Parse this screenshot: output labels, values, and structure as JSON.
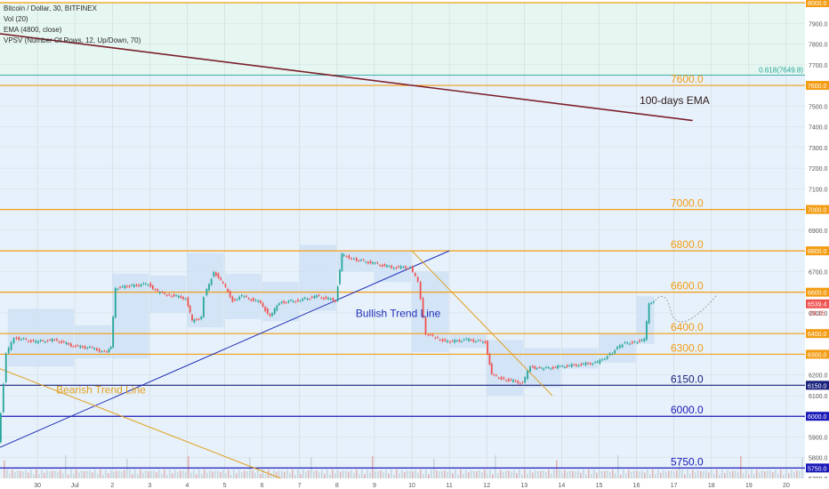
{
  "legend": {
    "symbol": "Bitcoin / Dollar, 30, BITFINEX",
    "vol": "Vol (20)",
    "ema": "EMA (4800, close)",
    "vpsv": "VPSV (Number Of Rows, 12, Up/Down, 70)"
  },
  "chart_data": {
    "type": "candlestick",
    "title": "Bitcoin / Dollar, 30, BITFINEX",
    "xlabel": "",
    "ylabel": "",
    "ylim": [
      5700,
      8000
    ],
    "x_range": [
      "2018-06-29",
      "2018-07-20"
    ],
    "x_ticks": [
      {
        "date": "2018-06-30",
        "label": "30"
      },
      {
        "date": "2018-07-01",
        "label": "Jul"
      },
      {
        "date": "2018-07-02",
        "label": "2"
      },
      {
        "date": "2018-07-03",
        "label": "3"
      },
      {
        "date": "2018-07-04",
        "label": "4"
      },
      {
        "date": "2018-07-05",
        "label": "5"
      },
      {
        "date": "2018-07-06",
        "label": "6"
      },
      {
        "date": "2018-07-07",
        "label": "7"
      },
      {
        "date": "2018-07-08",
        "label": "8"
      },
      {
        "date": "2018-07-09",
        "label": "9"
      },
      {
        "date": "2018-07-10",
        "label": "10"
      },
      {
        "date": "2018-07-11",
        "label": "11"
      },
      {
        "date": "2018-07-12",
        "label": "12"
      },
      {
        "date": "2018-07-13",
        "label": "13"
      },
      {
        "date": "2018-07-14",
        "label": "14"
      },
      {
        "date": "2018-07-15",
        "label": "15"
      },
      {
        "date": "2018-07-16",
        "label": "16"
      },
      {
        "date": "2018-07-17",
        "label": "17"
      },
      {
        "date": "2018-07-18",
        "label": "18"
      },
      {
        "date": "2018-07-19",
        "label": "19"
      },
      {
        "date": "2018-07-20",
        "label": "20"
      }
    ],
    "y_ticks": [
      5700,
      5800,
      5900,
      6000,
      6100,
      6150,
      6200,
      6300,
      6400,
      6500,
      6600,
      6700,
      6800,
      6900,
      7000,
      7100,
      7200,
      7300,
      7400,
      7500,
      7600,
      7700,
      7800,
      7900,
      8000
    ],
    "price_path": [
      [
        "2018-06-29T00:00",
        5880
      ],
      [
        "2018-06-29T05:00",
        6300
      ],
      [
        "2018-06-29T10:00",
        6380
      ],
      [
        "2018-06-30T00:00",
        6360
      ],
      [
        "2018-06-30T12:00",
        6370
      ],
      [
        "2018-07-01T00:00",
        6340
      ],
      [
        "2018-07-01T12:00",
        6330
      ],
      [
        "2018-07-01T20:00",
        6310
      ],
      [
        "2018-07-02T00:00",
        6330
      ],
      [
        "2018-07-02T03:00",
        6620
      ],
      [
        "2018-07-02T12:00",
        6630
      ],
      [
        "2018-07-03T00:00",
        6640
      ],
      [
        "2018-07-03T06:00",
        6600
      ],
      [
        "2018-07-03T12:00",
        6590
      ],
      [
        "2018-07-04T00:00",
        6570
      ],
      [
        "2018-07-04T04:00",
        6460
      ],
      [
        "2018-07-04T10:00",
        6480
      ],
      [
        "2018-07-04T12:00",
        6580
      ],
      [
        "2018-07-04T18:00",
        6700
      ],
      [
        "2018-07-05T00:00",
        6640
      ],
      [
        "2018-07-05T06:00",
        6560
      ],
      [
        "2018-07-05T12:00",
        6580
      ],
      [
        "2018-07-06T00:00",
        6550
      ],
      [
        "2018-07-06T06:00",
        6480
      ],
      [
        "2018-07-06T12:00",
        6550
      ],
      [
        "2018-07-07T00:00",
        6560
      ],
      [
        "2018-07-07T12:00",
        6580
      ],
      [
        "2018-07-08T00:00",
        6560
      ],
      [
        "2018-07-08T04:00",
        6780
      ],
      [
        "2018-07-08T12:00",
        6760
      ],
      [
        "2018-07-09T00:00",
        6740
      ],
      [
        "2018-07-09T12:00",
        6720
      ],
      [
        "2018-07-10T00:00",
        6720
      ],
      [
        "2018-07-10T05:00",
        6650
      ],
      [
        "2018-07-10T10:00",
        6400
      ],
      [
        "2018-07-10T16:00",
        6380
      ],
      [
        "2018-07-11T00:00",
        6360
      ],
      [
        "2018-07-11T12:00",
        6370
      ],
      [
        "2018-07-12T00:00",
        6360
      ],
      [
        "2018-07-12T04:00",
        6200
      ],
      [
        "2018-07-12T12:00",
        6180
      ],
      [
        "2018-07-13T00:00",
        6160
      ],
      [
        "2018-07-13T05:00",
        6240
      ],
      [
        "2018-07-13T12:00",
        6230
      ],
      [
        "2018-07-14T00:00",
        6240
      ],
      [
        "2018-07-14T12:00",
        6250
      ],
      [
        "2018-07-15T00:00",
        6260
      ],
      [
        "2018-07-15T08:00",
        6300
      ],
      [
        "2018-07-15T16:00",
        6350
      ],
      [
        "2018-07-16T00:00",
        6360
      ],
      [
        "2018-07-16T06:00",
        6370
      ],
      [
        "2018-07-16T09:00",
        6540
      ],
      [
        "2018-07-16T12:00",
        6560
      ]
    ],
    "current_price": 6539.4,
    "current_price_label": "6539.4",
    "countdown_label": "24:25",
    "horizontal_levels": [
      {
        "value": 8000,
        "label": "",
        "axis_label": "8000.0",
        "color": "#f39c12"
      },
      {
        "value": 7650,
        "label": "0.618(7649.8)",
        "axis_label": "",
        "color": "#26a69a"
      },
      {
        "value": 7600,
        "label": "7600.0",
        "axis_label": "7600.0",
        "color": "#f39c12"
      },
      {
        "value": 7000,
        "label": "7000.0",
        "axis_label": "7000.0",
        "color": "#f39c12"
      },
      {
        "value": 6800,
        "label": "6800.0",
        "axis_label": "6800.0",
        "color": "#f39c12"
      },
      {
        "value": 6600,
        "label": "6600.0",
        "axis_label": "6600.0",
        "color": "#f39c12"
      },
      {
        "value": 6400,
        "label": "6400.0",
        "axis_label": "6400.0",
        "color": "#f39c12"
      },
      {
        "value": 6300,
        "label": "6300.0",
        "axis_label": "6300.0",
        "color": "#f39c12"
      },
      {
        "value": 6150,
        "label": "6150.0",
        "axis_label": "6150.0",
        "color": "#1a237e"
      },
      {
        "value": 6000,
        "label": "6000.0",
        "axis_label": "6000.0",
        "color": "#1a1ab8"
      },
      {
        "value": 5750,
        "label": "5750.0",
        "axis_label": "5750.0",
        "color": "#1a1ab8"
      }
    ],
    "trend_lines": [
      {
        "label": "100-days EMA",
        "color": "#7b1f2a",
        "from": [
          "2018-06-29T00:00",
          7850
        ],
        "to": [
          "2018-07-17T12:00",
          7430
        ]
      },
      {
        "label": "Bullish Trend Line",
        "color": "#1f2fb8",
        "from": [
          "2018-06-29T00:00",
          5850
        ],
        "to": [
          "2018-07-11T00:00",
          6800
        ]
      },
      {
        "label": "Bearish Trend Line",
        "color": "#e0a020",
        "from": [
          "2018-06-29T00:00",
          6230
        ],
        "to": [
          "2018-07-06T12:00",
          5700
        ]
      },
      {
        "label": "",
        "color": "#e0a020",
        "from": [
          "2018-07-10T00:00",
          6800
        ],
        "to": [
          "2018-07-13T18:00",
          6100
        ]
      }
    ],
    "annotations": [
      {
        "text": "100-days EMA",
        "x": "2018-07-16T02:00",
        "y": 7510,
        "color": "#2b1a1a"
      },
      {
        "text": "Bullish Trend Line",
        "x": "2018-07-08T12:00",
        "y": 6480,
        "color": "#1f2fb8"
      },
      {
        "text": "Bearish Trend Line",
        "x": "2018-06-30T12:00",
        "y": 6110,
        "color": "#e0a020"
      }
    ],
    "volume_profile_boxes": [
      {
        "from": "2018-06-29T05:00",
        "to": "2018-07-01T00:00",
        "low": 6240,
        "high": 6520
      },
      {
        "from": "2018-07-01T00:00",
        "to": "2018-07-02T00:00",
        "low": 6280,
        "high": 6440
      },
      {
        "from": "2018-07-02T00:00",
        "to": "2018-07-03T00:00",
        "low": 6280,
        "high": 6690
      },
      {
        "from": "2018-07-03T00:00",
        "to": "2018-07-04T00:00",
        "low": 6500,
        "high": 6680
      },
      {
        "from": "2018-07-04T00:00",
        "to": "2018-07-05T00:00",
        "low": 6430,
        "high": 6790
      },
      {
        "from": "2018-07-05T00:00",
        "to": "2018-07-06T00:00",
        "low": 6470,
        "high": 6690
      },
      {
        "from": "2018-07-06T00:00",
        "to": "2018-07-07T00:00",
        "low": 6460,
        "high": 6650
      },
      {
        "from": "2018-07-07T00:00",
        "to": "2018-07-08T00:00",
        "low": 6510,
        "high": 6830
      },
      {
        "from": "2018-07-08T00:00",
        "to": "2018-07-09T00:00",
        "low": 6700,
        "high": 6800
      },
      {
        "from": "2018-07-09T00:00",
        "to": "2018-07-10T00:00",
        "low": 6650,
        "high": 6800
      },
      {
        "from": "2018-07-10T00:00",
        "to": "2018-07-11T00:00",
        "low": 6310,
        "high": 6700
      },
      {
        "from": "2018-07-11T00:00",
        "to": "2018-07-12T00:00",
        "low": 6330,
        "high": 6400
      },
      {
        "from": "2018-07-12T00:00",
        "to": "2018-07-13T00:00",
        "low": 6100,
        "high": 6370
      },
      {
        "from": "2018-07-13T00:00",
        "to": "2018-07-14T00:00",
        "low": 6140,
        "high": 6330
      },
      {
        "from": "2018-07-14T00:00",
        "to": "2018-07-15T00:00",
        "low": 6230,
        "high": 6330
      },
      {
        "from": "2018-07-15T00:00",
        "to": "2018-07-16T00:00",
        "low": 6260,
        "high": 6400
      },
      {
        "from": "2018-07-16T00:00",
        "to": "2018-07-16T12:00",
        "low": 6350,
        "high": 6580
      }
    ],
    "fib_zone": {
      "from": 7650,
      "to": 8000
    },
    "grid": true,
    "colors": {
      "up": "#26a69a",
      "down": "#ef5350",
      "bg_upper": "#e6f7f1",
      "bg_lower": "#e7f1fb",
      "box": "#cfe2f5",
      "grid": "#cfd8dc"
    }
  }
}
